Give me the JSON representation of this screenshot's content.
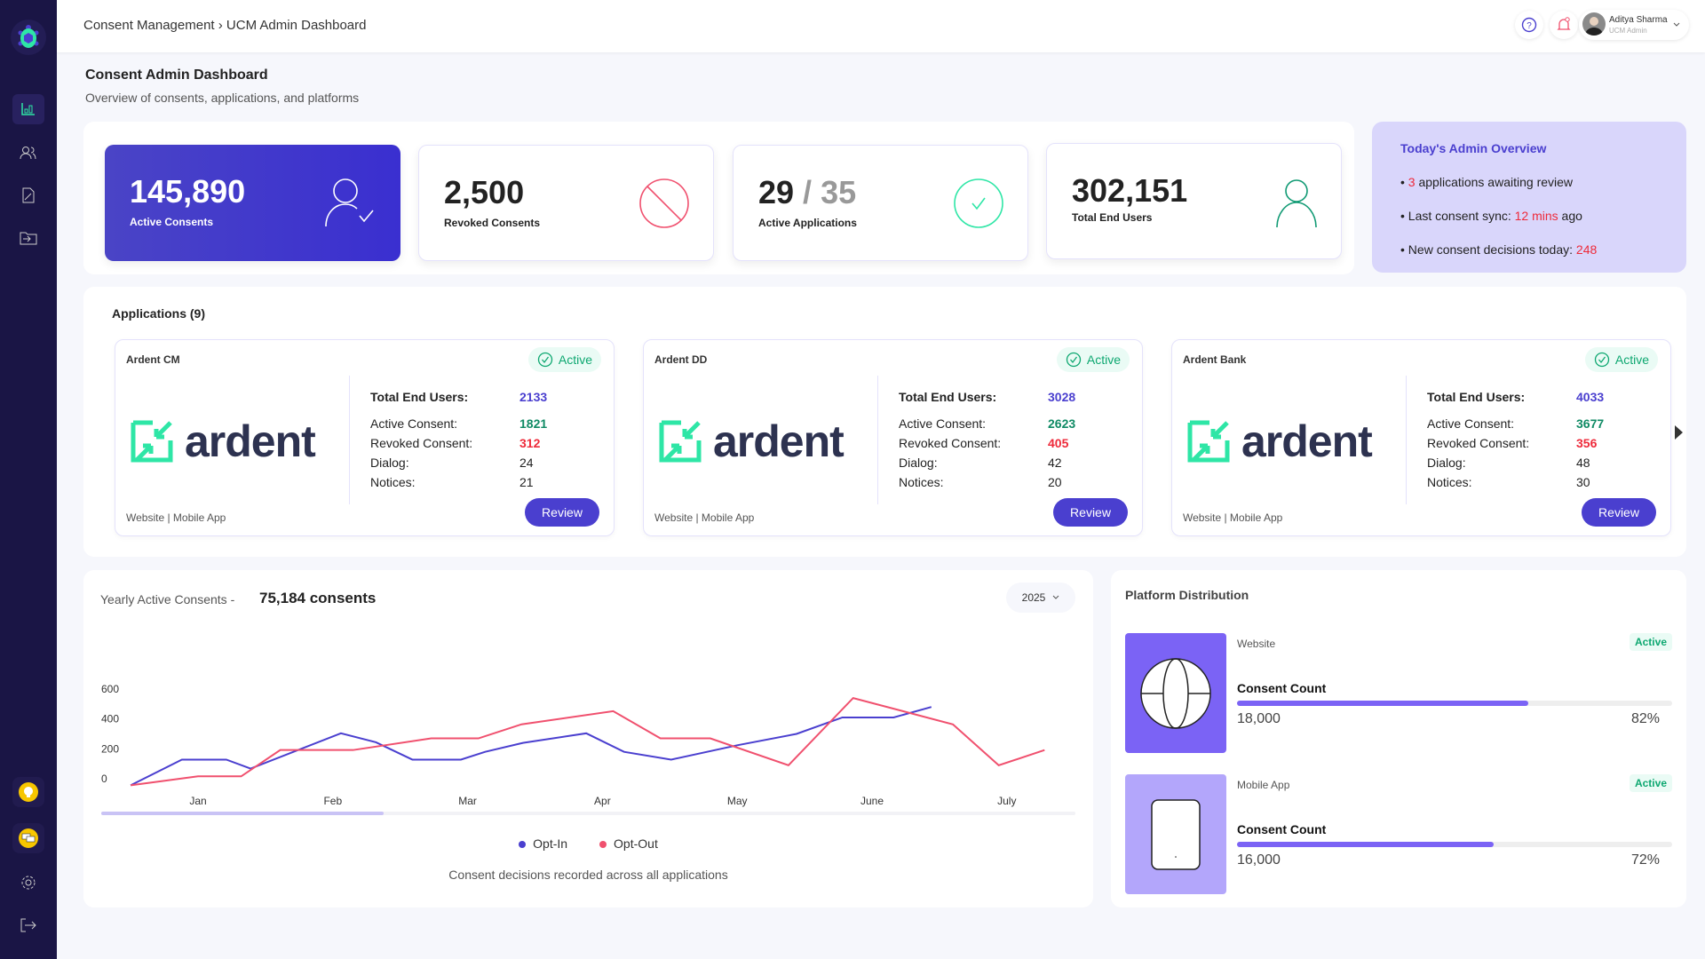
{
  "header": {
    "breadcrumb": "Consent Management › UCM Admin Dashboard",
    "user_name": "Aditya Sharma",
    "user_role": "UCM Admin"
  },
  "page": {
    "title": "Consent Admin Dashboard",
    "subtitle": "Overview of consents, applications, and platforms"
  },
  "stats": [
    {
      "value": "145,890",
      "label": "Active Consents",
      "icon": "user-check-icon"
    },
    {
      "value": "2,500",
      "label": "Revoked Consents",
      "icon": "ban-icon"
    },
    {
      "value_main": "29",
      "value_sep": " / ",
      "value_total": "35",
      "label": "Active Applications",
      "icon": "check-circle-icon"
    },
    {
      "value": "302,151",
      "label": "Total End Users",
      "icon": "user-icon"
    }
  ],
  "overview": {
    "title": "Today's Admin Overview",
    "l1_num": "3",
    "l1_text": " applications awaiting review",
    "l2_pre": "Last consent sync: ",
    "l2_red": "12 mins",
    "l2_post": " ago",
    "l3_pre": "New consent decisions today: ",
    "l3_red": "248"
  },
  "applications": {
    "title": "Applications (9)",
    "labels": {
      "total": "Total End Users:",
      "active": "Active Consent:",
      "revoked": "Revoked Consent:",
      "dialog": "Dialog:",
      "notices": "Notices:"
    },
    "review_label": "Review",
    "status": "Active",
    "logo_text": "ardent",
    "items": [
      {
        "name": "Ardent CM",
        "total": "2133",
        "active": "1821",
        "revoked": "312",
        "dialog": "24",
        "notices": "21",
        "platforms": "Website | Mobile App"
      },
      {
        "name": "Ardent DD",
        "total": "3028",
        "active": "2623",
        "revoked": "405",
        "dialog": "42",
        "notices": "20",
        "platforms": "Website | Mobile App"
      },
      {
        "name": "Ardent Bank",
        "total": "4033",
        "active": "3677",
        "revoked": "356",
        "dialog": "48",
        "notices": "30",
        "platforms": "Website | Mobile App"
      }
    ]
  },
  "chart": {
    "title": "Yearly Active Consents -",
    "total": "75,184 consents",
    "year": "2025",
    "footer": "Consent decisions recorded across all applications"
  },
  "chart_data": {
    "type": "line",
    "categories": [
      "Jan",
      "Feb",
      "Mar",
      "Apr",
      "May",
      "June",
      "July"
    ],
    "yticks": [
      "0",
      "200",
      "400",
      "600"
    ],
    "ylim": [
      0,
      600
    ],
    "legend": "bottom",
    "series": [
      {
        "name": "Opt-In",
        "color": "#4a3fcf",
        "points": [
          [
            -0.5,
            -44
          ],
          [
            -0.12,
            128
          ],
          [
            0.21,
            128
          ],
          [
            0.39,
            68
          ],
          [
            1.06,
            304
          ],
          [
            1.32,
            244
          ],
          [
            1.59,
            128
          ],
          [
            1.95,
            128
          ],
          [
            2.13,
            180
          ],
          [
            2.41,
            240
          ],
          [
            2.88,
            304
          ],
          [
            3.16,
            180
          ],
          [
            3.51,
            128
          ],
          [
            4.0,
            224
          ],
          [
            4.44,
            300
          ],
          [
            4.78,
            410
          ],
          [
            5.16,
            410
          ],
          [
            5.44,
            480
          ]
        ]
      },
      {
        "name": "Opt-Out",
        "color": "#f0506e",
        "points": [
          [
            -0.5,
            -44
          ],
          [
            0,
            16
          ],
          [
            0.32,
            16
          ],
          [
            0.61,
            192
          ],
          [
            1.15,
            192
          ],
          [
            1.73,
            270
          ],
          [
            2.08,
            270
          ],
          [
            2.4,
            364
          ],
          [
            3.08,
            452
          ],
          [
            3.43,
            270
          ],
          [
            3.8,
            270
          ],
          [
            4.38,
            90
          ],
          [
            4.86,
            540
          ],
          [
            5.6,
            364
          ],
          [
            5.94,
            90
          ],
          [
            6.28,
            192
          ]
        ]
      }
    ]
  },
  "platforms": {
    "title": "Platform Distribution",
    "count_label": "Consent Count",
    "items": [
      {
        "name": "Website",
        "status": "Active",
        "count": "18,000",
        "percent": "82%",
        "fill": 0.67,
        "color": "#7b63f5"
      },
      {
        "name": "Mobile App",
        "status": "Active",
        "count": "16,000",
        "percent": "72%",
        "fill": 0.59,
        "color": "#b3a6fb"
      }
    ]
  }
}
